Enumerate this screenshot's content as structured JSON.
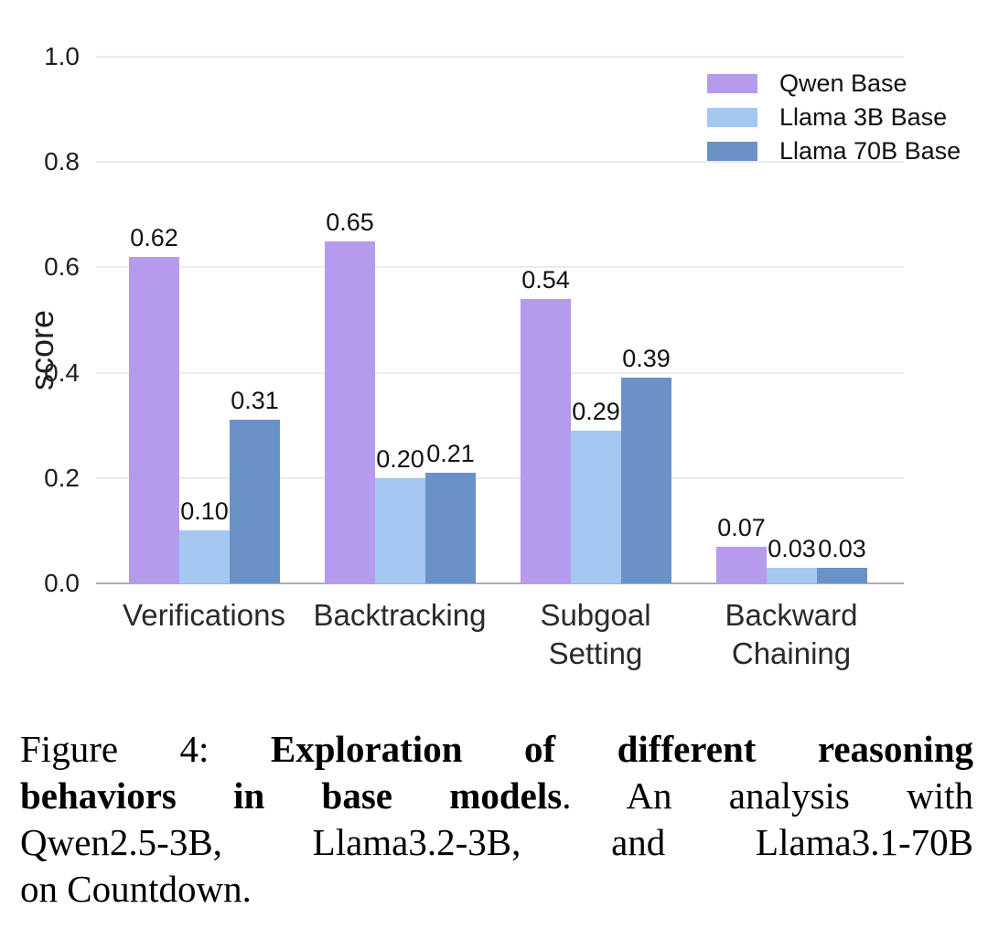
{
  "chart_data": {
    "type": "bar",
    "title": "",
    "xlabel": "",
    "ylabel": "score",
    "ylim": [
      0.0,
      1.0
    ],
    "yticks": [
      0.0,
      0.2,
      0.4,
      0.6,
      0.8,
      1.0
    ],
    "grid": true,
    "legend_position": "top-right",
    "categories": [
      "Verifications",
      "Backtracking",
      "Subgoal Setting",
      "Backward Chaining"
    ],
    "category_label_lines": [
      [
        "Verifications"
      ],
      [
        "Backtracking"
      ],
      [
        "Subgoal",
        "Setting"
      ],
      [
        "Backward",
        "Chaining"
      ]
    ],
    "series": [
      {
        "name": "Qwen Base",
        "color": "#b59aed",
        "values": [
          0.62,
          0.65,
          0.54,
          0.07
        ]
      },
      {
        "name": "Llama 3B Base",
        "color": "#a4c8f1",
        "values": [
          0.1,
          0.2,
          0.29,
          0.03
        ]
      },
      {
        "name": "Llama 70B Base",
        "color": "#6a92c6",
        "values": [
          0.31,
          0.21,
          0.39,
          0.03
        ]
      }
    ],
    "value_label_decimals": 2
  },
  "caption": {
    "full_text": "Figure 4: Exploration of different reasoning behaviors in base models. An analysis with Qwen2.5-3B, Llama3.2-3B, and Llama3.1-70B on Countdown.",
    "lines": [
      {
        "fill": true,
        "segments": [
          {
            "t": "Figure 4: ",
            "b": false
          },
          {
            "t": "Exploration of different reasoning",
            "b": true
          }
        ]
      },
      {
        "fill": true,
        "segments": [
          {
            "t": "behaviors in base models",
            "b": true
          },
          {
            "t": ". An analysis with",
            "b": false
          }
        ]
      },
      {
        "fill": true,
        "segments": [
          {
            "t": "Qwen2.5-3B, Llama3.2-3B, and Llama3.1-70B",
            "b": false
          }
        ]
      },
      {
        "fill": false,
        "segments": [
          {
            "t": "on Countdown.",
            "b": false
          }
        ]
      }
    ]
  },
  "colors": {
    "gridline": "#ebebee",
    "axis_line": "#aeaeb2",
    "tick_text": "#1f1f1f",
    "value_text": "#111111",
    "background": "#ffffff"
  }
}
